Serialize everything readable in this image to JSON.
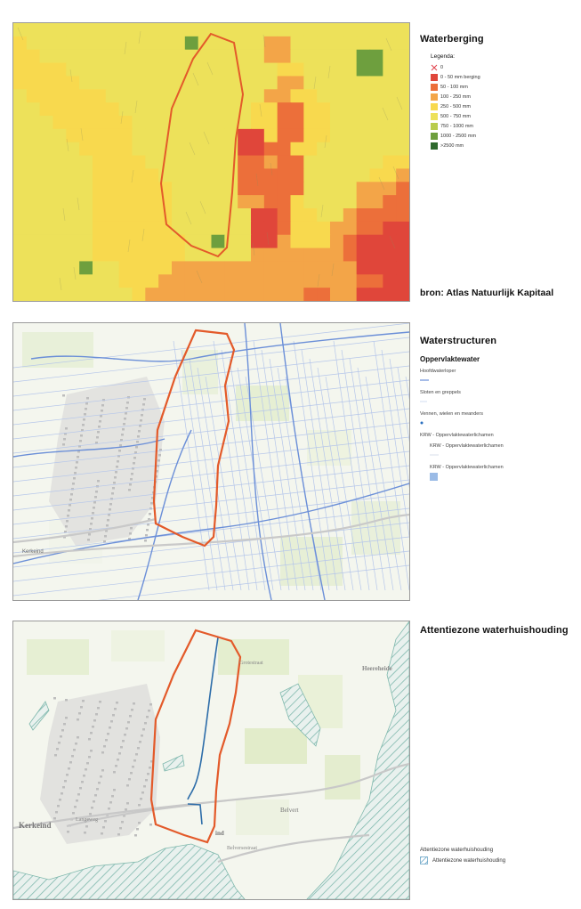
{
  "panel1": {
    "title": "Waterberging",
    "legend_title": "Legenda:",
    "legend": [
      {
        "label": "0",
        "color": "#e0404a",
        "kind": "cross"
      },
      {
        "label": "0 - 50 mm berging",
        "color": "#e0463a"
      },
      {
        "label": "50 - 100 mm",
        "color": "#ec6f3a"
      },
      {
        "label": "100 - 250 mm",
        "color": "#f3a548"
      },
      {
        "label": "250 - 500 mm",
        "color": "#f8d94e"
      },
      {
        "label": "500 - 750 mm",
        "color": "#ede15a"
      },
      {
        "label": "750 - 1000 mm",
        "color": "#b9cc4c"
      },
      {
        "label": "1000 - 2500 mm",
        "color": "#6e9f3e"
      },
      {
        "label": ">2500 mm",
        "color": "#2f6a2e"
      }
    ],
    "source": "bron: Atlas Natuurlijk Kapitaal"
  },
  "panel2": {
    "title": "Waterstructuren",
    "section": "Oppervlaktewater",
    "items": [
      {
        "label": "Hoofdwaterloper",
        "kind": "line",
        "color": "#6b8fd8"
      },
      {
        "label": "Sloten en greppels",
        "kind": "thinline",
        "color": "#b5c6ea"
      },
      {
        "label": "Vennen, wielen en meanders",
        "kind": "dot",
        "color": "#2a6fbf"
      },
      {
        "label": "KRW - Oppervlaktewaterlichamen",
        "kind": "none",
        "color": ""
      },
      {
        "label": "KRW - Oppervlaktewaterlichamen",
        "kind": "line-indent",
        "color": "#cfd8e6"
      },
      {
        "label": "KRW - Oppervlaktewaterlichamen",
        "kind": "square-indent",
        "color": "#9bbbe6"
      }
    ],
    "places": [
      "Kerkeind"
    ]
  },
  "panel3": {
    "title": "Attentiezone waterhuishouding",
    "legend_title": "Attentiezone waterhuishouding",
    "legend_item": "Attentiezone waterhuishouding",
    "places": [
      "Kerkeind",
      "Belvert",
      "Heereheide",
      "Langeweg",
      "Belversestraat",
      "Grotestraat",
      "ind"
    ]
  },
  "colors": {
    "boundary": "#e35a2a",
    "water": "#6b8fd8",
    "hatch": "#7fb8ad"
  }
}
